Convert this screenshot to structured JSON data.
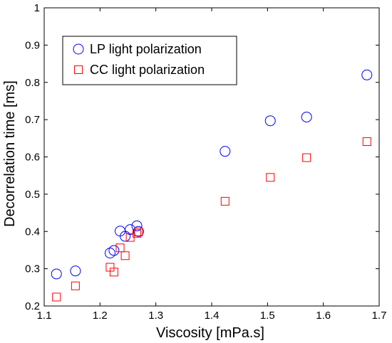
{
  "chart_data": {
    "type": "scatter",
    "title": "",
    "xlabel": "Viscosity [mPa.s]",
    "ylabel": "Decorrelation time [ms]",
    "xlim": [
      1.1,
      1.7
    ],
    "ylim": [
      0.2,
      1.0
    ],
    "xticks": [
      "1.1",
      "1.2",
      "1.3",
      "1.4",
      "1.5",
      "1.6",
      "1.7"
    ],
    "yticks": [
      "0.2",
      "0.3",
      "0.4",
      "0.5",
      "0.6",
      "0.7",
      "0.8",
      "0.9",
      "1"
    ],
    "grid": false,
    "legend_position": "top-left",
    "series": [
      {
        "name": "LP light polarization",
        "marker": "circle",
        "color": "#0000ff",
        "x": [
          1.122,
          1.156,
          1.218,
          1.225,
          1.236,
          1.245,
          1.254,
          1.266,
          1.269,
          1.424,
          1.505,
          1.57,
          1.678
        ],
        "y": [
          0.286,
          0.294,
          0.342,
          0.349,
          0.401,
          0.387,
          0.405,
          0.415,
          0.4,
          0.615,
          0.697,
          0.707,
          0.82
        ]
      },
      {
        "name": "CC light polarization",
        "marker": "square",
        "color": "#ff0000",
        "x": [
          1.122,
          1.156,
          1.218,
          1.225,
          1.236,
          1.245,
          1.254,
          1.266,
          1.269,
          1.424,
          1.505,
          1.57,
          1.678
        ],
        "y": [
          0.224,
          0.254,
          0.304,
          0.291,
          0.356,
          0.335,
          0.384,
          0.395,
          0.399,
          0.481,
          0.545,
          0.598,
          0.641
        ]
      }
    ]
  }
}
